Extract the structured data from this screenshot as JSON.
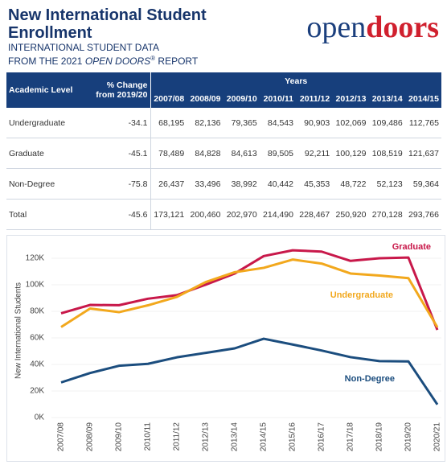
{
  "header": {
    "title": "New International Student Enrollment",
    "subtitle": "INTERNATIONAL STUDENT DATA",
    "source_parts": [
      "FROM THE 2021 ",
      "OPEN DOORS",
      "®",
      " REPORT"
    ],
    "logo_parts": [
      "open",
      "doors"
    ]
  },
  "table": {
    "level_header": "Academic Level",
    "change_header": [
      "% Change",
      "from 2019/20"
    ],
    "years_header": "Years",
    "years": [
      "2007/08",
      "2008/09",
      "2009/10",
      "2010/11",
      "2011/12",
      "2012/13",
      "2013/14",
      "2014/15"
    ],
    "rows": [
      [
        "Undergraduate",
        "-34.1",
        "68,195",
        "82,136",
        "79,365",
        "84,543",
        "90,903",
        "102,069",
        "109,486",
        "112,765"
      ],
      [
        "Graduate",
        "-45.1",
        "78,489",
        "84,828",
        "84,613",
        "89,505",
        "92,211",
        "100,129",
        "108,519",
        "121,637"
      ],
      [
        "Non-Degree",
        "-75.8",
        "26,437",
        "33,496",
        "38,992",
        "40,442",
        "45,353",
        "48,722",
        "52,123",
        "59,364"
      ],
      [
        "Total",
        "-45.6",
        "173,121",
        "200,460",
        "202,970",
        "214,490",
        "228,467",
        "250,920",
        "270,128",
        "293,766"
      ]
    ]
  },
  "chart_data": {
    "type": "line",
    "y_label": "New International Students",
    "categories": [
      "2007/08",
      "2008/09",
      "2009/10",
      "2010/11",
      "2011/12",
      "2012/13",
      "2013/14",
      "2014/15",
      "2015/16",
      "2016/17",
      "2017/18",
      "2018/19",
      "2019/20",
      "2020/21"
    ],
    "series": [
      {
        "name": "Graduate",
        "color": "#c8184a",
        "values": [
          78489,
          84828,
          84613,
          89505,
          92211,
          100129,
          108519,
          121637,
          126000,
          125000,
          118000,
          120000,
          120500,
          66000
        ]
      },
      {
        "name": "Undergraduate",
        "color": "#f2a81d",
        "values": [
          68195,
          82136,
          79365,
          84543,
          90903,
          102069,
          109486,
          112765,
          119000,
          116000,
          108500,
          107000,
          105000,
          68000
        ]
      },
      {
        "name": "Non-Degree",
        "color": "#1b4d7e",
        "values": [
          26437,
          33496,
          38992,
          40442,
          45353,
          48722,
          52123,
          59364,
          55000,
          50500,
          45500,
          42500,
          42300,
          9800
        ]
      }
    ],
    "ylim": [
      0,
      130000
    ],
    "yticks": [
      {
        "value": 0,
        "label": "0K"
      },
      {
        "value": 20000,
        "label": "20K"
      },
      {
        "value": 40000,
        "label": "40K"
      },
      {
        "value": 60000,
        "label": "60K"
      },
      {
        "value": 80000,
        "label": "80K"
      },
      {
        "value": 100000,
        "label": "100K"
      },
      {
        "value": 120000,
        "label": "120K"
      }
    ],
    "grid": true
  }
}
